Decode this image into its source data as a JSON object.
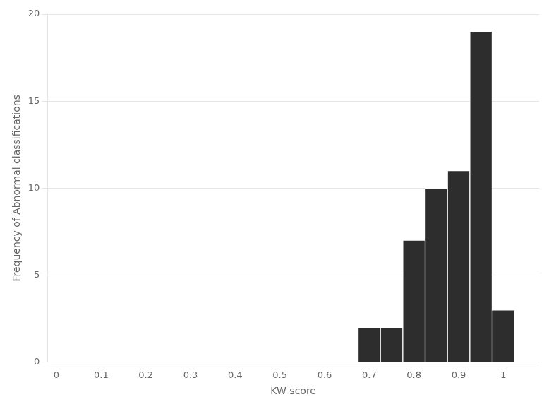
{
  "chart_data": {
    "type": "bar",
    "xlabel": "KW score",
    "ylabel": "Frequency of Abnormal classifications",
    "x": [
      0.7,
      0.75,
      0.8,
      0.85,
      0.9,
      0.95,
      1.0
    ],
    "values": [
      2,
      2,
      7,
      10,
      11,
      19,
      3
    ],
    "color": "#2d2d2d",
    "xlim": [
      -0.02,
      1.08
    ],
    "xticks": [
      0,
      0.1,
      0.2,
      0.3,
      0.4,
      0.5,
      0.6,
      0.7,
      0.8,
      0.9,
      1.0
    ],
    "ylim": [
      0,
      20
    ],
    "yticks": [
      0,
      5,
      10,
      15,
      20
    ],
    "grid": true
  }
}
